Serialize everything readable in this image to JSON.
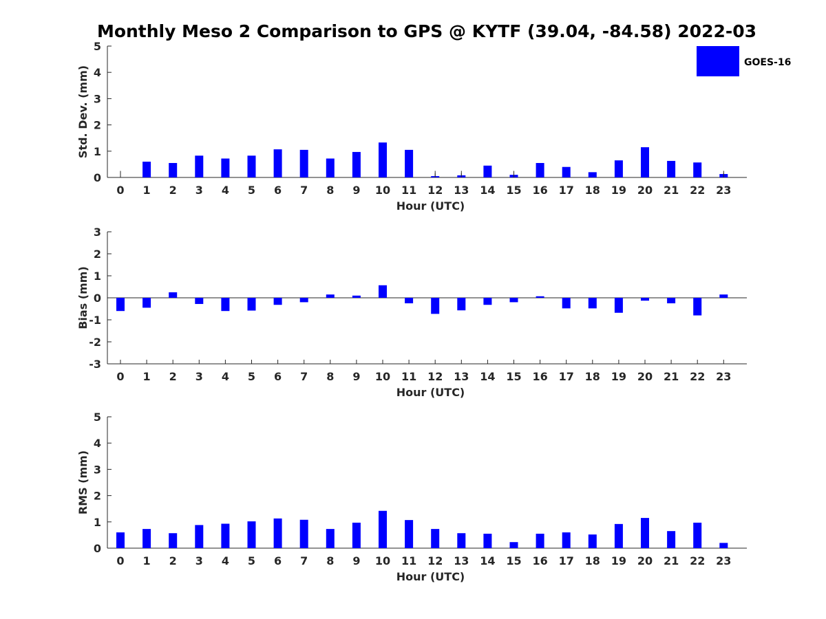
{
  "title": "Monthly Meso 2 Comparison to GPS @ KYTF (39.04, -84.58) 2022-03",
  "legend": {
    "label": "GOES-16",
    "color": "#0000ff",
    "placement": "top-right"
  },
  "chart_data": [
    {
      "type": "bar",
      "name": "std_dev",
      "categories": [
        "0",
        "1",
        "2",
        "3",
        "4",
        "5",
        "6",
        "7",
        "8",
        "9",
        "10",
        "11",
        "12",
        "13",
        "14",
        "15",
        "16",
        "17",
        "18",
        "19",
        "20",
        "21",
        "22",
        "23"
      ],
      "series": [
        {
          "name": "GOES-16",
          "color": "#0000ff",
          "values": [
            0,
            0.6,
            0.55,
            0.83,
            0.72,
            0.83,
            1.07,
            1.05,
            0.72,
            0.97,
            1.33,
            1.05,
            0.05,
            0.08,
            0.45,
            0.1,
            0.55,
            0.4,
            0.2,
            0.65,
            1.15,
            0.63,
            0.57,
            0.13
          ],
          "error_ticks": [
            0.25,
            0,
            0,
            0,
            0,
            0,
            0,
            0,
            0,
            0,
            0,
            0,
            0.25,
            0.25,
            0,
            0.25,
            0,
            0,
            0,
            0,
            0,
            0,
            0,
            0.25
          ]
        }
      ],
      "xlabel": "Hour (UTC)",
      "ylabel": "Std. Dev. (mm)",
      "ylim": [
        0,
        5
      ],
      "yticks": [
        0,
        1,
        2,
        3,
        4,
        5
      ],
      "grid": false
    },
    {
      "type": "bar",
      "name": "bias",
      "categories": [
        "0",
        "1",
        "2",
        "3",
        "4",
        "5",
        "6",
        "7",
        "8",
        "9",
        "10",
        "11",
        "12",
        "13",
        "14",
        "15",
        "16",
        "17",
        "18",
        "19",
        "20",
        "21",
        "22",
        "23"
      ],
      "series": [
        {
          "name": "GOES-16",
          "color": "#0000ff",
          "values": [
            -0.6,
            -0.45,
            0.25,
            -0.28,
            -0.6,
            -0.58,
            -0.32,
            -0.2,
            0.15,
            0.1,
            0.57,
            -0.25,
            -0.73,
            -0.57,
            -0.32,
            -0.2,
            0.07,
            -0.48,
            -0.48,
            -0.68,
            -0.13,
            -0.25,
            -0.8,
            0.15
          ]
        }
      ],
      "xlabel": "Hour (UTC)",
      "ylabel": "Bias (mm)",
      "ylim": [
        -3,
        3
      ],
      "yticks": [
        -3,
        -2,
        -1,
        0,
        1,
        2,
        3
      ],
      "grid": false
    },
    {
      "type": "bar",
      "name": "rms",
      "categories": [
        "0",
        "1",
        "2",
        "3",
        "4",
        "5",
        "6",
        "7",
        "8",
        "9",
        "10",
        "11",
        "12",
        "13",
        "14",
        "15",
        "16",
        "17",
        "18",
        "19",
        "20",
        "21",
        "22",
        "23"
      ],
      "series": [
        {
          "name": "GOES-16",
          "color": "#0000ff",
          "values": [
            0.6,
            0.73,
            0.57,
            0.88,
            0.93,
            1.02,
            1.13,
            1.08,
            0.73,
            0.97,
            1.42,
            1.07,
            0.73,
            0.57,
            0.55,
            0.23,
            0.55,
            0.6,
            0.52,
            0.92,
            1.15,
            0.65,
            0.97,
            0.2
          ]
        }
      ],
      "xlabel": "Hour (UTC)",
      "ylabel": "RMS (mm)",
      "ylim": [
        0,
        5
      ],
      "yticks": [
        0,
        1,
        2,
        3,
        4,
        5
      ],
      "grid": false
    }
  ]
}
